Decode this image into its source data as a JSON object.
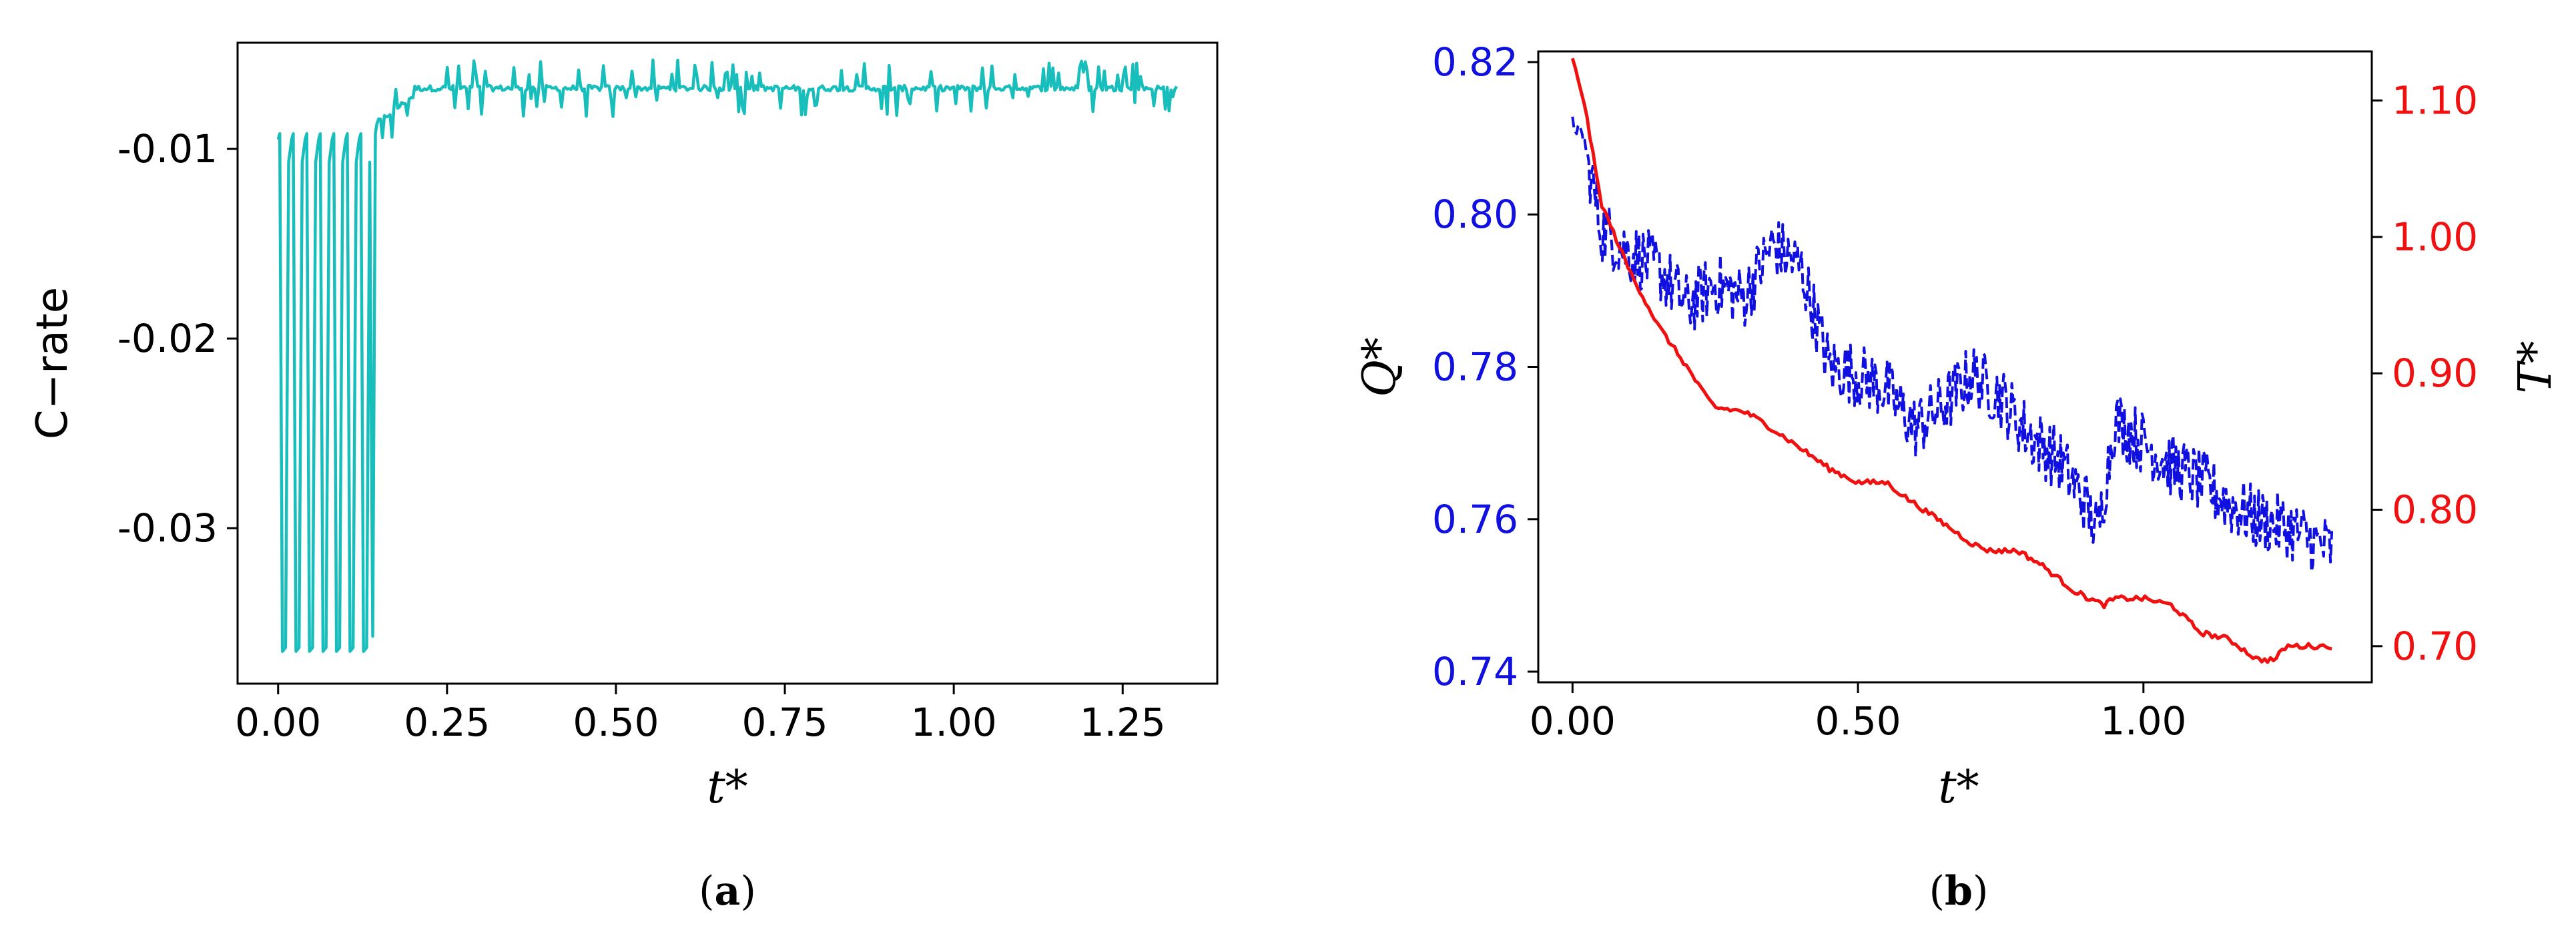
{
  "colors": {
    "c_rate": "#17BEBB",
    "q_star": "#1010E0",
    "t_star": "#F01010",
    "q_axis": "#1010E0",
    "t_axis": "#F01010",
    "axis": "#000000"
  },
  "captions": {
    "a_open": "(",
    "a_letter": "a",
    "a_close": ")",
    "b_open": "(",
    "b_letter": "b",
    "b_close": ")"
  },
  "chart_data": [
    {
      "id": "a",
      "type": "line",
      "xlabel": "t*",
      "ylabel": "C−rate",
      "xlim": [
        -0.06,
        1.39
      ],
      "ylim": [
        -0.0382,
        -0.0044
      ],
      "xticks": [
        0.0,
        0.25,
        0.5,
        0.75,
        1.0,
        1.25
      ],
      "xtick_labels": [
        "0.00",
        "0.25",
        "0.50",
        "0.75",
        "1.00",
        "1.25"
      ],
      "yticks": [
        -0.01,
        -0.02,
        -0.03
      ],
      "ytick_labels": [
        "-0.01",
        "-0.02",
        "-0.03"
      ],
      "grid": false,
      "series": [
        {
          "style": "solid",
          "description_values": {
            "x_range": [
              0.0,
              1.33
            ],
            "oscillation_phase": {
              "x_range": [
                0.0,
                0.14
              ],
              "cycles": 7,
              "high": -0.0095,
              "low": -0.0365
            },
            "steady_phase": {
              "x_range": [
                0.14,
                1.33
              ],
              "baseline": -0.0068,
              "noise_min": -0.0094,
              "noise_max": -0.0053
            }
          }
        }
      ]
    },
    {
      "id": "b",
      "type": "line",
      "xlabel": "t*",
      "ylabel_left": "Q*",
      "ylabel_right": "T*",
      "xlim": [
        -0.06,
        1.4
      ],
      "ylim_left": [
        0.7386,
        0.8214
      ],
      "ylim_right": [
        0.6735,
        1.136
      ],
      "xticks": [
        0.0,
        0.5,
        1.0
      ],
      "xtick_labels": [
        "0.00",
        "0.50",
        "1.00"
      ],
      "yticks_left": [
        0.74,
        0.76,
        0.78,
        0.8,
        0.82
      ],
      "ytick_labels_left": [
        "0.74",
        "0.76",
        "0.78",
        "0.80",
        "0.82"
      ],
      "yticks_right": [
        0.7,
        0.8,
        0.9,
        1.0,
        1.1
      ],
      "ytick_labels_right": [
        "0.70",
        "0.80",
        "0.90",
        "1.00",
        "1.10"
      ],
      "grid": false,
      "series": [
        {
          "axis": "left",
          "style": "dashed",
          "x": [
            0.0,
            0.02,
            0.05,
            0.1,
            0.15,
            0.2,
            0.25,
            0.3,
            0.35,
            0.4,
            0.45,
            0.5,
            0.55,
            0.6,
            0.65,
            0.7,
            0.75,
            0.8,
            0.85,
            0.9,
            0.92,
            0.95,
            1.0,
            1.05,
            1.1,
            1.15,
            1.2,
            1.25,
            1.3,
            1.33
          ],
          "y": [
            0.812,
            0.81,
            0.798,
            0.795,
            0.793,
            0.788,
            0.791,
            0.789,
            0.796,
            0.793,
            0.78,
            0.779,
            0.777,
            0.772,
            0.775,
            0.779,
            0.776,
            0.771,
            0.768,
            0.762,
            0.758,
            0.773,
            0.77,
            0.767,
            0.765,
            0.762,
            0.76,
            0.759,
            0.757,
            0.756
          ]
        },
        {
          "axis": "right",
          "style": "solid",
          "x": [
            0.0,
            0.02,
            0.05,
            0.1,
            0.15,
            0.2,
            0.23,
            0.25,
            0.3,
            0.33,
            0.4,
            0.45,
            0.5,
            0.55,
            0.58,
            0.65,
            0.7,
            0.73,
            0.78,
            0.82,
            0.88,
            0.93,
            0.95,
            1.0,
            1.05,
            1.1,
            1.15,
            1.2,
            1.23,
            1.25,
            1.33
          ],
          "y": [
            1.13,
            1.1,
            1.025,
            0.975,
            0.935,
            0.905,
            0.885,
            0.875,
            0.872,
            0.865,
            0.845,
            0.83,
            0.82,
            0.82,
            0.81,
            0.79,
            0.775,
            0.77,
            0.77,
            0.76,
            0.74,
            0.73,
            0.735,
            0.735,
            0.73,
            0.71,
            0.705,
            0.69,
            0.69,
            0.7,
            0.7
          ]
        }
      ]
    }
  ]
}
